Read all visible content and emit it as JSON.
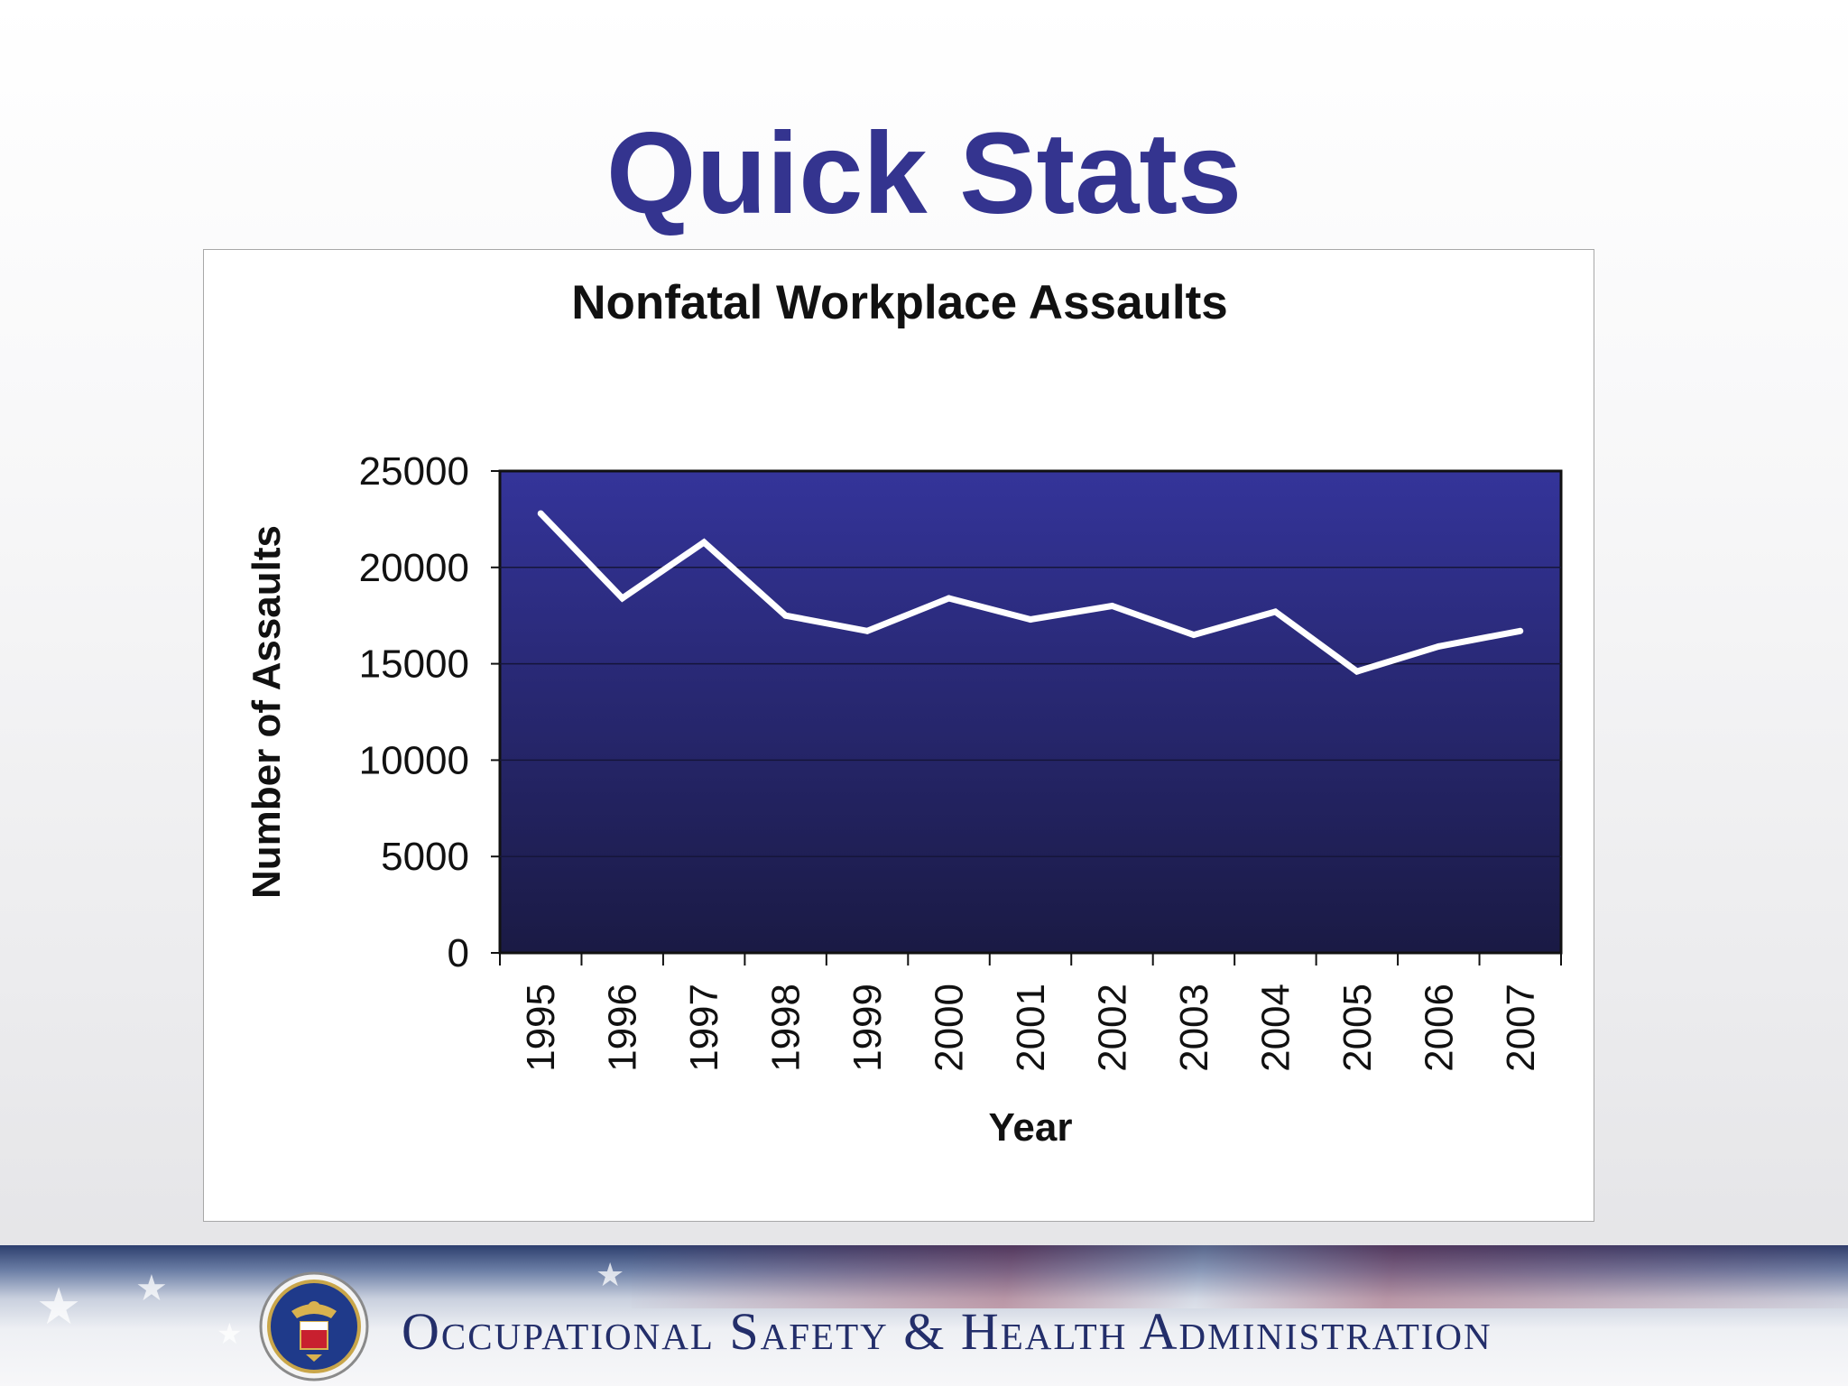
{
  "slide": {
    "title": "Quick Stats"
  },
  "footer": {
    "agency_name": "Occupational Safety & Health Administration"
  },
  "colors": {
    "title": "#34348f",
    "plot_top": "#34349a",
    "plot_bottom": "#1a1a44",
    "line": "#ffffff"
  },
  "chart_data": {
    "type": "line",
    "title": "Nonfatal Workplace Assaults",
    "xlabel": "Year",
    "ylabel": "Number of Assaults",
    "categories": [
      "1995",
      "1996",
      "1997",
      "1998",
      "1999",
      "2000",
      "2001",
      "2002",
      "2003",
      "2004",
      "2005",
      "2006",
      "2007"
    ],
    "series": [
      {
        "values": [
          22800,
          18400,
          21300,
          17500,
          16700,
          18400,
          17300,
          18000,
          16500,
          17700,
          14600,
          15900,
          16700
        ]
      }
    ],
    "ylim": [
      0,
      25000
    ],
    "yticks": [
      "0",
      "5000",
      "10000",
      "15000",
      "20000",
      "25000"
    ],
    "grid": true,
    "legend": "none"
  }
}
